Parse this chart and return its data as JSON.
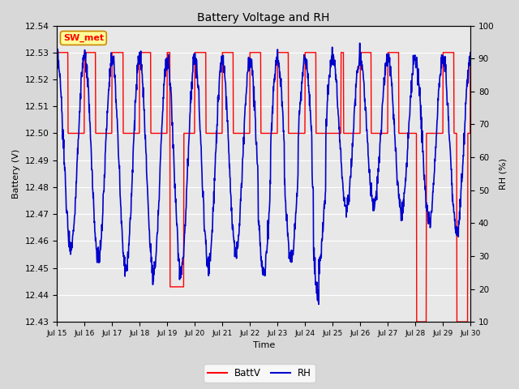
{
  "title": "Battery Voltage and RH",
  "xlabel": "Time",
  "ylabel_left": "Battery (V)",
  "ylabel_right": "RH (%)",
  "ylim_left": [
    12.43,
    12.54
  ],
  "ylim_right": [
    10,
    100
  ],
  "yticks_left": [
    12.43,
    12.44,
    12.45,
    12.46,
    12.47,
    12.48,
    12.49,
    12.5,
    12.51,
    12.52,
    12.53,
    12.54
  ],
  "yticks_right": [
    10,
    20,
    30,
    40,
    50,
    60,
    70,
    80,
    90,
    100
  ],
  "xtick_labels": [
    "Jul 15",
    "Jul 16",
    "Jul 17",
    "Jul 18",
    "Jul 19",
    "Jul 20",
    "Jul 21",
    "Jul 22",
    "Jul 23",
    "Jul 24",
    "Jul 25",
    "Jul 26",
    "Jul 27",
    "Jul 28",
    "Jul 29",
    "Jul 30"
  ],
  "annotation_text": "SW_met",
  "annotation_bg": "#ffff99",
  "annotation_border": "#cc8800",
  "batt_color": "#ff0000",
  "rh_color": "#0000cc",
  "legend_batt": "BattV",
  "legend_rh": "RH",
  "bg_color": "#d8d8d8",
  "plot_bg": "#e8e8e8",
  "batt_lw": 1.0,
  "rh_lw": 1.2
}
